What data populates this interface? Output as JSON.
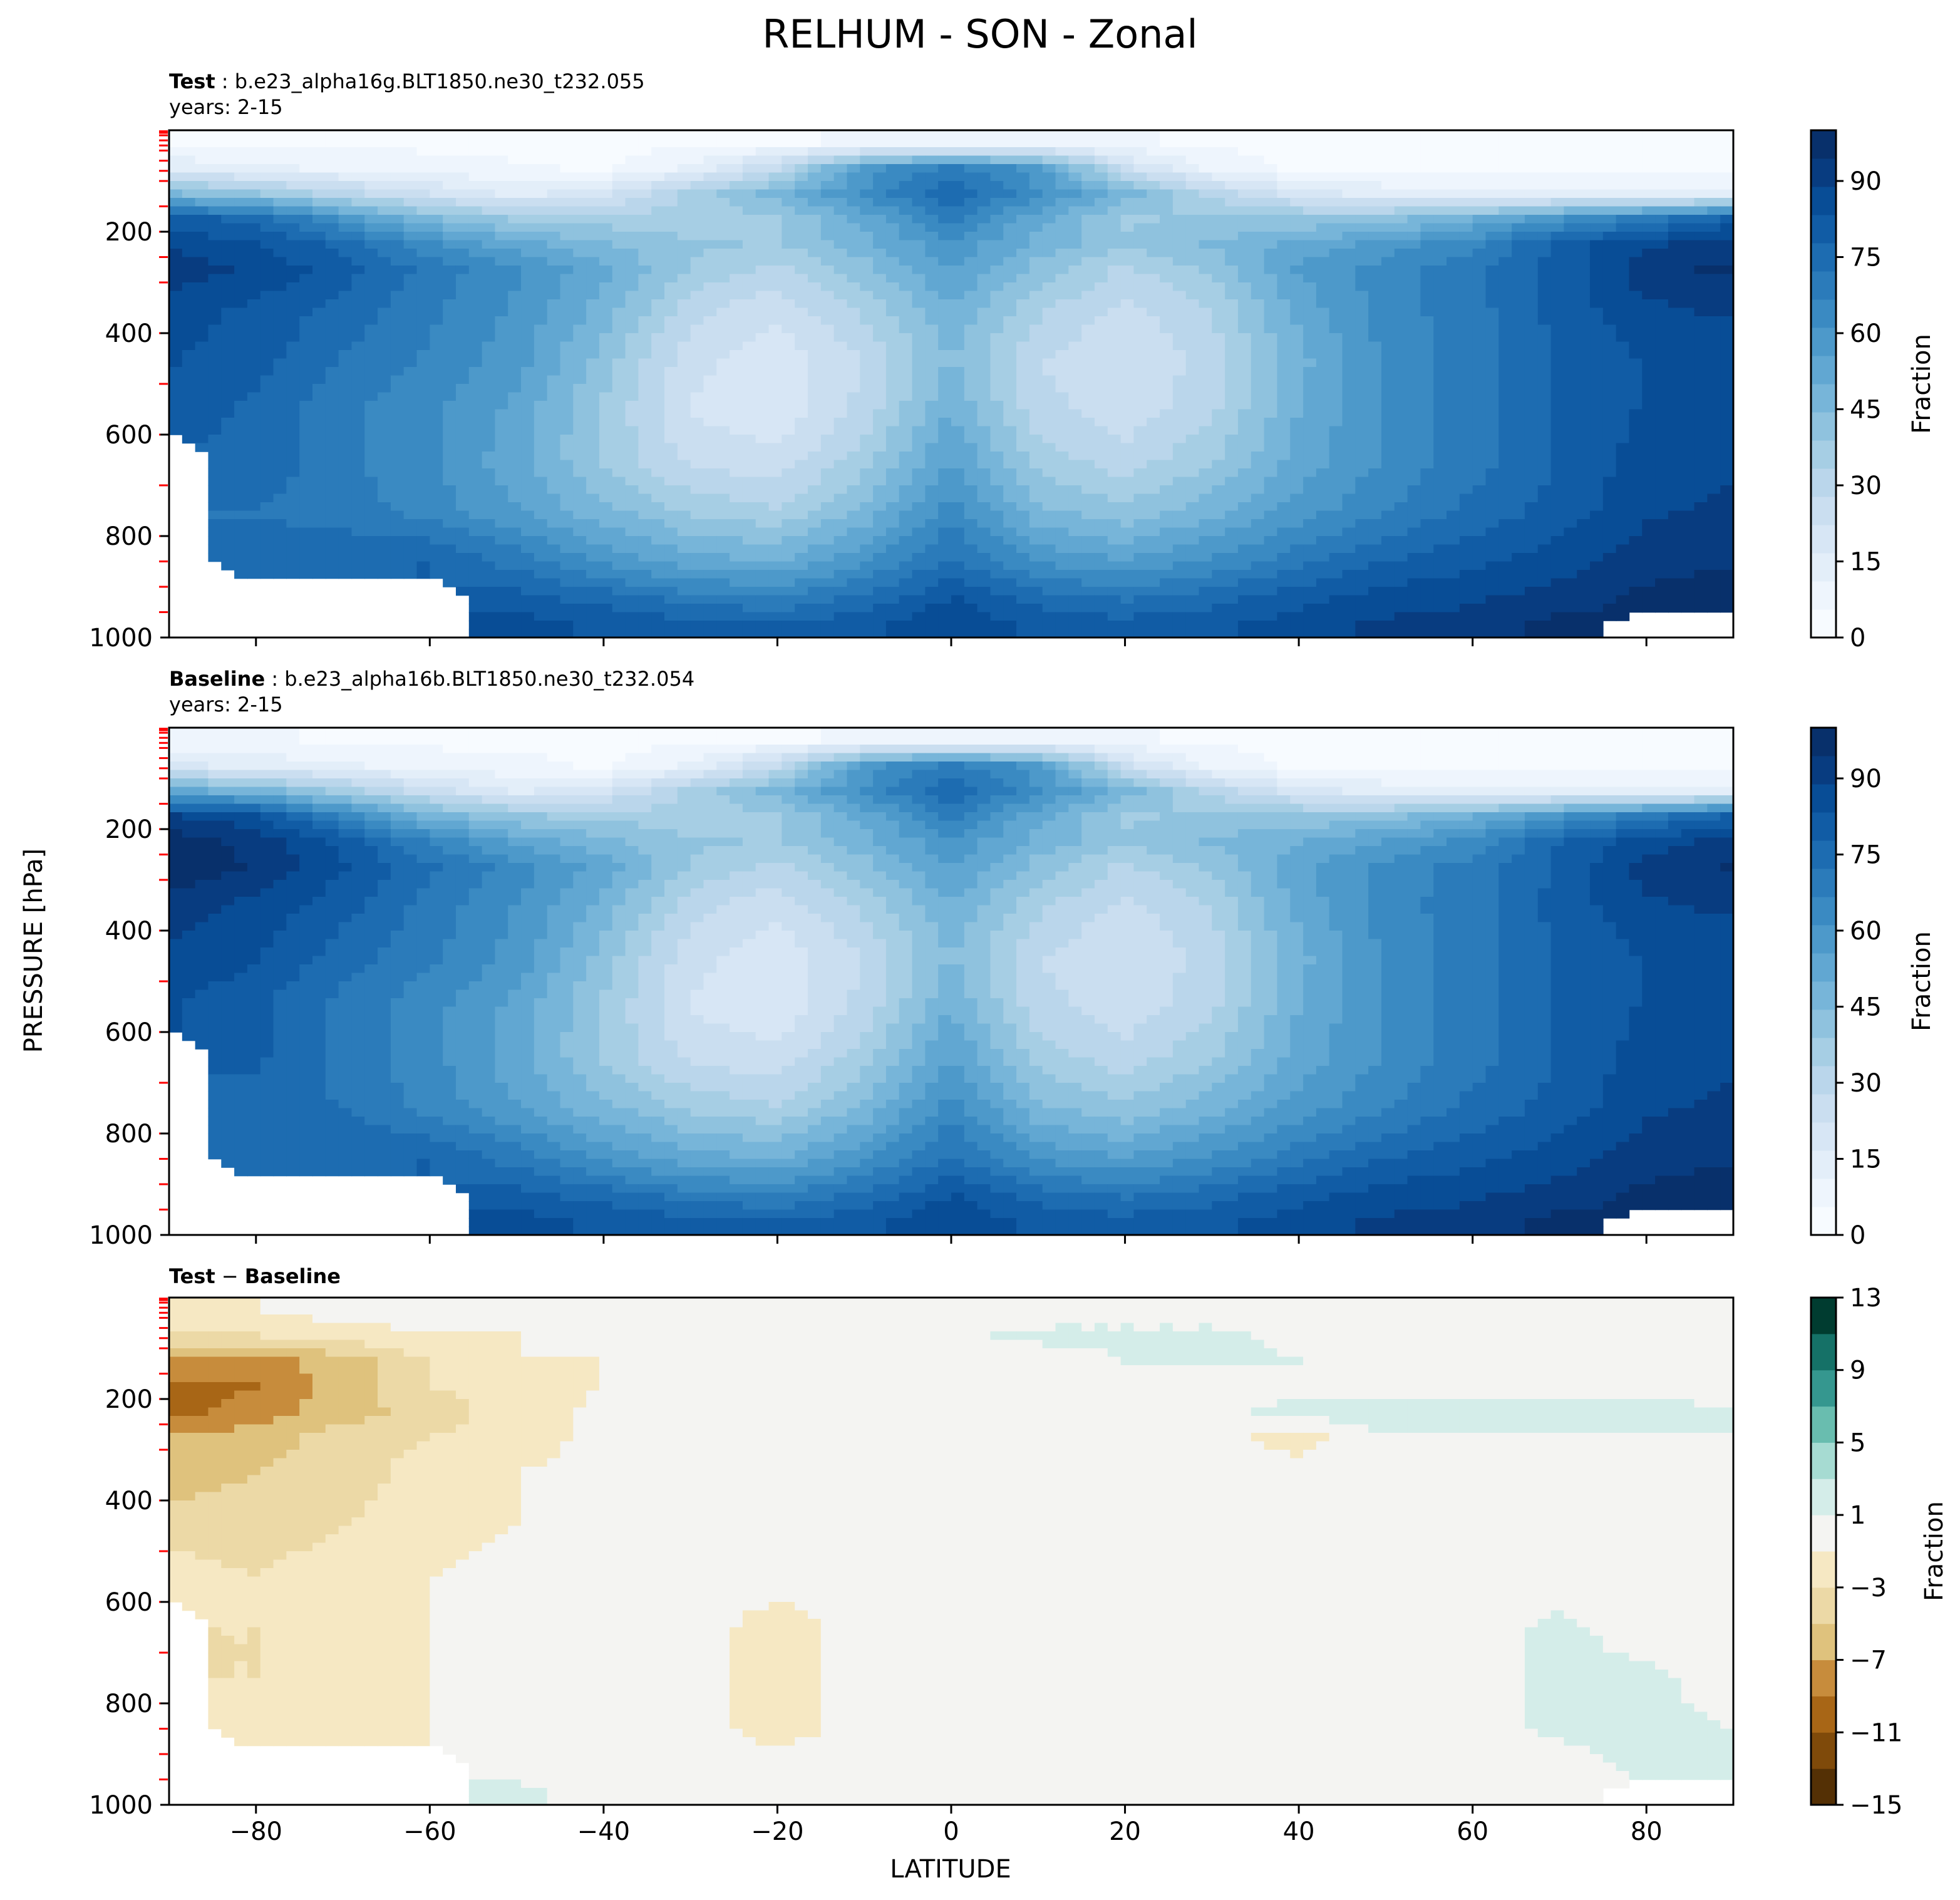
{
  "figure": {
    "title": "RELHUM - SON - Zonal",
    "xlabel": "LATITUDE",
    "ylabel": "PRESSURE [hPa]"
  },
  "colors": {
    "blues": [
      "#f7fbff",
      "#eef5fd",
      "#e3eef9",
      "#d7e6f5",
      "#cadef0",
      "#bad6eb",
      "#a6cee4",
      "#8fc2de",
      "#77b5d9",
      "#61a7d2",
      "#4d99ca",
      "#3a8ac2",
      "#2b7bba",
      "#1d6cb1",
      "#115ca5",
      "#084d96",
      "#083c80",
      "#08306b"
    ],
    "diff": [
      "#543005",
      "#7f4a0a",
      "#a86616",
      "#c78c3c",
      "#dfc27d",
      "#ecd9a6",
      "#f6e8c3",
      "#f4f4f2",
      "#d4ede9",
      "#a6dbd2",
      "#69bdaf",
      "#35978f",
      "#157167",
      "#003c30"
    ],
    "tick_marks": "#ff0000"
  },
  "panels": [
    {
      "label_bold": "Test",
      "label_rest": " : b.e23_alpha16g.BLT1850.ne30_t232.055",
      "years": "years: 2-15",
      "colorbar_label": "Fraction",
      "colorbar_ticks": [
        "0",
        "15",
        "30",
        "45",
        "60",
        "75",
        "90"
      ]
    },
    {
      "label_bold": "Baseline",
      "label_rest": " : b.e23_alpha16b.BLT1850.ne30_t232.054",
      "years": "years: 2-15",
      "colorbar_label": "Fraction",
      "colorbar_ticks": [
        "0",
        "15",
        "30",
        "45",
        "60",
        "75",
        "90"
      ]
    },
    {
      "label_bold": "Test",
      "label_mid": " − ",
      "label_bold2": "Baseline",
      "colorbar_label": "Fraction",
      "colorbar_ticks": [
        "−15",
        "−11",
        "−7",
        "−3",
        "1",
        "5",
        "9",
        "13"
      ]
    }
  ],
  "chart_data": [
    {
      "type": "heatmap",
      "title": "Test : b.e23_alpha16g.BLT1850.ne30_t232.055",
      "subtitle": "years: 2-15",
      "xlim": [
        -90,
        90
      ],
      "ylim": [
        1000,
        0
      ],
      "x_ticks": [
        -80,
        -60,
        -40,
        -20,
        0,
        20,
        40,
        60,
        80
      ],
      "y_ticks": [
        200,
        400,
        600,
        800,
        1000
      ],
      "lat": [
        -90,
        -80,
        -70,
        -60,
        -50,
        -40,
        -30,
        -20,
        -10,
        0,
        10,
        20,
        30,
        40,
        50,
        60,
        70,
        80,
        90
      ],
      "lev": [
        25,
        75,
        125,
        175,
        225,
        275,
        350,
        450,
        550,
        650,
        750,
        850,
        925,
        975
      ],
      "z": [
        [
          5,
          5,
          5,
          4,
          4,
          4,
          4,
          5,
          6,
          7,
          7,
          6,
          5,
          4,
          4,
          4,
          4,
          4,
          4
        ],
        [
          15,
          12,
          10,
          8,
          6,
          5,
          12,
          28,
          58,
          68,
          58,
          25,
          8,
          5,
          4,
          4,
          4,
          4,
          4
        ],
        [
          45,
          40,
          30,
          22,
          15,
          20,
          35,
          48,
          62,
          78,
          62,
          48,
          32,
          20,
          14,
          12,
          12,
          12,
          12
        ],
        [
          80,
          76,
          60,
          45,
          38,
          36,
          35,
          38,
          52,
          68,
          52,
          38,
          40,
          40,
          42,
          50,
          60,
          70,
          80
        ],
        [
          88,
          84,
          76,
          62,
          52,
          45,
          40,
          38,
          48,
          60,
          48,
          40,
          45,
          52,
          58,
          65,
          80,
          88,
          92
        ],
        [
          92,
          88,
          80,
          70,
          62,
          52,
          38,
          32,
          42,
          56,
          42,
          32,
          40,
          56,
          64,
          70,
          80,
          92,
          96
        ],
        [
          86,
          82,
          76,
          68,
          60,
          48,
          30,
          24,
          35,
          50,
          35,
          26,
          34,
          52,
          64,
          70,
          80,
          88,
          90
        ],
        [
          84,
          80,
          72,
          66,
          58,
          42,
          24,
          18,
          28,
          45,
          28,
          22,
          30,
          48,
          62,
          70,
          78,
          84,
          86
        ],
        [
          82,
          76,
          68,
          62,
          54,
          38,
          22,
          18,
          30,
          50,
          30,
          24,
          32,
          50,
          62,
          70,
          78,
          84,
          86
        ],
        [
          null,
          76,
          68,
          62,
          52,
          38,
          26,
          24,
          36,
          56,
          36,
          30,
          38,
          52,
          62,
          70,
          78,
          86,
          88
        ],
        [
          null,
          72,
          70,
          64,
          56,
          46,
          38,
          34,
          46,
          64,
          46,
          40,
          48,
          58,
          66,
          74,
          80,
          88,
          90
        ],
        [
          null,
          74,
          76,
          78,
          70,
          60,
          52,
          50,
          60,
          74,
          60,
          56,
          62,
          70,
          78,
          82,
          86,
          92,
          94
        ],
        [
          null,
          null,
          null,
          null,
          80,
          76,
          70,
          68,
          74,
          84,
          76,
          72,
          76,
          82,
          86,
          88,
          92,
          96,
          98
        ],
        [
          null,
          null,
          null,
          null,
          86,
          82,
          80,
          78,
          82,
          88,
          82,
          80,
          82,
          86,
          90,
          92,
          96,
          null,
          null
        ]
      ],
      "colorbar_label": "Fraction",
      "colorbar_range": [
        0,
        100
      ]
    },
    {
      "type": "heatmap",
      "title": "Baseline : b.e23_alpha16b.BLT1850.ne30_t232.054",
      "subtitle": "years: 2-15",
      "xlim": [
        -90,
        90
      ],
      "ylim": [
        1000,
        0
      ],
      "x_ticks": [
        -80,
        -60,
        -40,
        -20,
        0,
        20,
        40,
        60,
        80
      ],
      "y_ticks": [
        200,
        400,
        600,
        800,
        1000
      ],
      "lat": [
        -90,
        -80,
        -70,
        -60,
        -50,
        -40,
        -30,
        -20,
        -10,
        0,
        10,
        20,
        30,
        40,
        50,
        60,
        70,
        80,
        90
      ],
      "lev": [
        25,
        75,
        125,
        175,
        225,
        275,
        350,
        450,
        550,
        650,
        750,
        850,
        925,
        975
      ],
      "z": [
        [
          6,
          6,
          5,
          4,
          4,
          4,
          4,
          5,
          6,
          7,
          7,
          6,
          5,
          4,
          4,
          4,
          4,
          4,
          4
        ],
        [
          18,
          15,
          12,
          9,
          7,
          5,
          12,
          28,
          58,
          68,
          58,
          25,
          8,
          5,
          4,
          4,
          4,
          4,
          4
        ],
        [
          52,
          48,
          36,
          25,
          16,
          21,
          35,
          48,
          62,
          78,
          62,
          48,
          32,
          20,
          14,
          12,
          12,
          12,
          12
        ],
        [
          90,
          85,
          66,
          48,
          40,
          37,
          35,
          38,
          52,
          68,
          52,
          38,
          40,
          40,
          42,
          50,
          60,
          70,
          80
        ],
        [
          98,
          92,
          82,
          66,
          54,
          46,
          40,
          38,
          48,
          60,
          48,
          40,
          45,
          50,
          56,
          63,
          78,
          86,
          91
        ],
        [
          99,
          94,
          84,
          73,
          64,
          53,
          38,
          32,
          42,
          56,
          42,
          32,
          40,
          54,
          63,
          69,
          79,
          91,
          95
        ],
        [
          92,
          87,
          80,
          70,
          61,
          48,
          30,
          24,
          35,
          50,
          35,
          26,
          34,
          52,
          64,
          70,
          80,
          88,
          90
        ],
        [
          88,
          84,
          75,
          68,
          59,
          42,
          24,
          18,
          28,
          45,
          28,
          22,
          30,
          48,
          62,
          70,
          78,
          84,
          86
        ],
        [
          84,
          79,
          70,
          63,
          54,
          38,
          22,
          18,
          30,
          50,
          30,
          24,
          32,
          50,
          62,
          70,
          78,
          84,
          86
        ],
        [
          null,
          79,
          70,
          63,
          52,
          38,
          26,
          24,
          36,
          56,
          36,
          30,
          38,
          52,
          62,
          70,
          78,
          86,
          88
        ],
        [
          null,
          75,
          72,
          65,
          56,
          46,
          38,
          34,
          46,
          64,
          46,
          40,
          48,
          58,
          66,
          74,
          80,
          88,
          90
        ],
        [
          null,
          76,
          77,
          78,
          70,
          60,
          52,
          50,
          60,
          74,
          60,
          56,
          62,
          70,
          78,
          82,
          86,
          92,
          94
        ],
        [
          null,
          null,
          null,
          null,
          80,
          76,
          70,
          68,
          74,
          84,
          76,
          72,
          76,
          82,
          86,
          88,
          92,
          96,
          98
        ],
        [
          null,
          null,
          null,
          null,
          86,
          82,
          80,
          78,
          82,
          88,
          82,
          80,
          82,
          86,
          90,
          92,
          96,
          null,
          null
        ]
      ],
      "colorbar_label": "Fraction",
      "colorbar_range": [
        0,
        100
      ]
    },
    {
      "type": "heatmap",
      "title": "Test − Baseline",
      "xlim": [
        -90,
        90
      ],
      "ylim": [
        1000,
        0
      ],
      "x_ticks": [
        -80,
        -60,
        -40,
        -20,
        0,
        20,
        40,
        60,
        80
      ],
      "y_ticks": [
        200,
        400,
        600,
        800,
        1000
      ],
      "lat": [
        -90,
        -80,
        -70,
        -60,
        -50,
        -40,
        -30,
        -20,
        -10,
        0,
        10,
        20,
        30,
        40,
        50,
        60,
        70,
        80,
        90
      ],
      "lev": [
        25,
        75,
        125,
        175,
        225,
        275,
        350,
        450,
        550,
        650,
        750,
        850,
        925,
        975
      ],
      "z": [
        [
          -1,
          -1,
          0,
          0,
          0,
          0,
          0,
          0,
          0,
          0,
          0,
          0,
          0,
          0,
          0,
          0,
          0,
          0,
          0
        ],
        [
          -3,
          -3,
          -2,
          -1,
          -1,
          0,
          0,
          0,
          0,
          0.5,
          1.5,
          1.5,
          1.5,
          0.5,
          0,
          0,
          0,
          0,
          0
        ],
        [
          -7,
          -8,
          -6,
          -3,
          -1,
          -1,
          -0.5,
          0,
          0,
          0,
          0,
          1,
          1.5,
          1,
          0.5,
          0,
          0,
          0,
          0
        ],
        [
          -10,
          -9,
          -6,
          -3,
          -2,
          -1,
          0,
          0,
          0,
          0,
          0,
          0,
          0,
          0,
          0,
          0,
          0,
          0,
          0
        ],
        [
          -10,
          -8,
          -6,
          -4,
          -2,
          -0.5,
          0,
          0,
          0,
          0,
          0,
          0,
          0,
          2,
          2,
          2,
          2,
          2,
          1
        ],
        [
          -7,
          -6,
          -4,
          -3,
          -2,
          -0.5,
          0,
          0,
          0,
          0,
          0,
          0,
          0,
          -2,
          1,
          1,
          1,
          1,
          1
        ],
        [
          -6,
          -5,
          -4,
          -2,
          -1,
          0,
          0,
          0,
          0,
          0,
          0,
          0,
          -1,
          0,
          1,
          1,
          1,
          1,
          1
        ],
        [
          -4,
          -4,
          -3,
          -2,
          -1,
          0,
          0,
          0,
          0,
          0,
          0,
          0,
          0,
          0,
          0,
          0,
          0,
          0,
          0
        ],
        [
          -2,
          -3,
          -2,
          -1,
          0,
          0,
          0,
          0,
          0,
          0,
          0,
          0,
          0,
          0,
          0,
          0,
          0,
          0,
          0
        ],
        [
          null,
          -3,
          -2,
          -1,
          0,
          0,
          0,
          -2,
          0,
          0,
          0,
          0,
          0,
          0,
          0,
          0,
          1.5,
          0,
          0
        ],
        [
          null,
          -3,
          -2,
          -1,
          0,
          0,
          0,
          -2,
          0,
          0,
          0,
          0,
          0,
          0,
          0,
          0,
          1.5,
          1.5,
          0
        ],
        [
          null,
          -2,
          -1,
          -1,
          0,
          0,
          0,
          -2,
          0,
          0,
          0,
          0,
          0,
          0,
          0,
          0,
          1.5,
          1.5,
          1
        ],
        [
          null,
          null,
          null,
          null,
          0,
          0,
          0,
          0,
          0,
          0,
          0,
          0,
          0,
          0,
          0,
          0,
          0,
          1.5,
          1.5
        ],
        [
          null,
          null,
          null,
          null,
          1.5,
          0,
          0,
          0,
          0,
          0,
          0,
          0,
          0,
          0,
          0,
          0,
          0,
          null,
          null
        ]
      ],
      "colorbar_label": "Fraction",
      "colorbar_levels": [
        -15,
        -13,
        -11,
        -9,
        -7,
        -5,
        -3,
        -1,
        1,
        3,
        5,
        7,
        9,
        11,
        13
      ]
    }
  ]
}
